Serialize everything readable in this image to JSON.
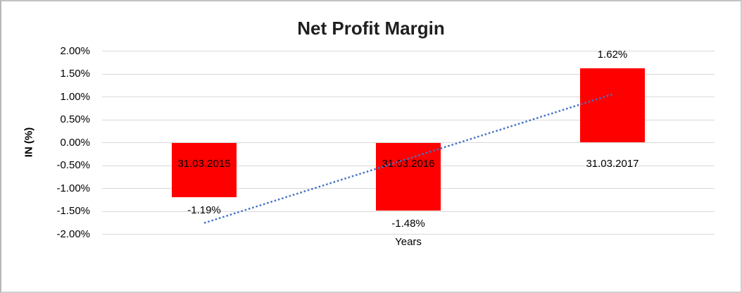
{
  "chart_data": {
    "type": "bar",
    "title": "Net Profit Margin",
    "categories": [
      "31.03.2015",
      "31.03.2016",
      "31.03.2017"
    ],
    "values": [
      -1.19,
      -1.48,
      1.62
    ],
    "data_labels": [
      "-1.19%",
      "-1.48%",
      "1.62%"
    ],
    "xlabel": "Years",
    "ylabel": "IN (%)",
    "ylim": [
      -2.0,
      2.0
    ],
    "ytick_step": 0.5,
    "ytick_labels": [
      "2.00%",
      "1.50%",
      "1.00%",
      "0.50%",
      "0.00%",
      "-0.50%",
      "-1.00%",
      "-1.50%",
      "-2.00%"
    ],
    "grid": true,
    "legend": "none",
    "colors": {
      "bar": "#FF0000",
      "trendline": "#4472C4",
      "gridline": "#D9D9D9",
      "text": "#000000",
      "title": "#1F1F1F"
    },
    "trendline": {
      "kind": "linear",
      "style": "dotted",
      "start_value": -1.755,
      "end_value": 1.055
    }
  }
}
